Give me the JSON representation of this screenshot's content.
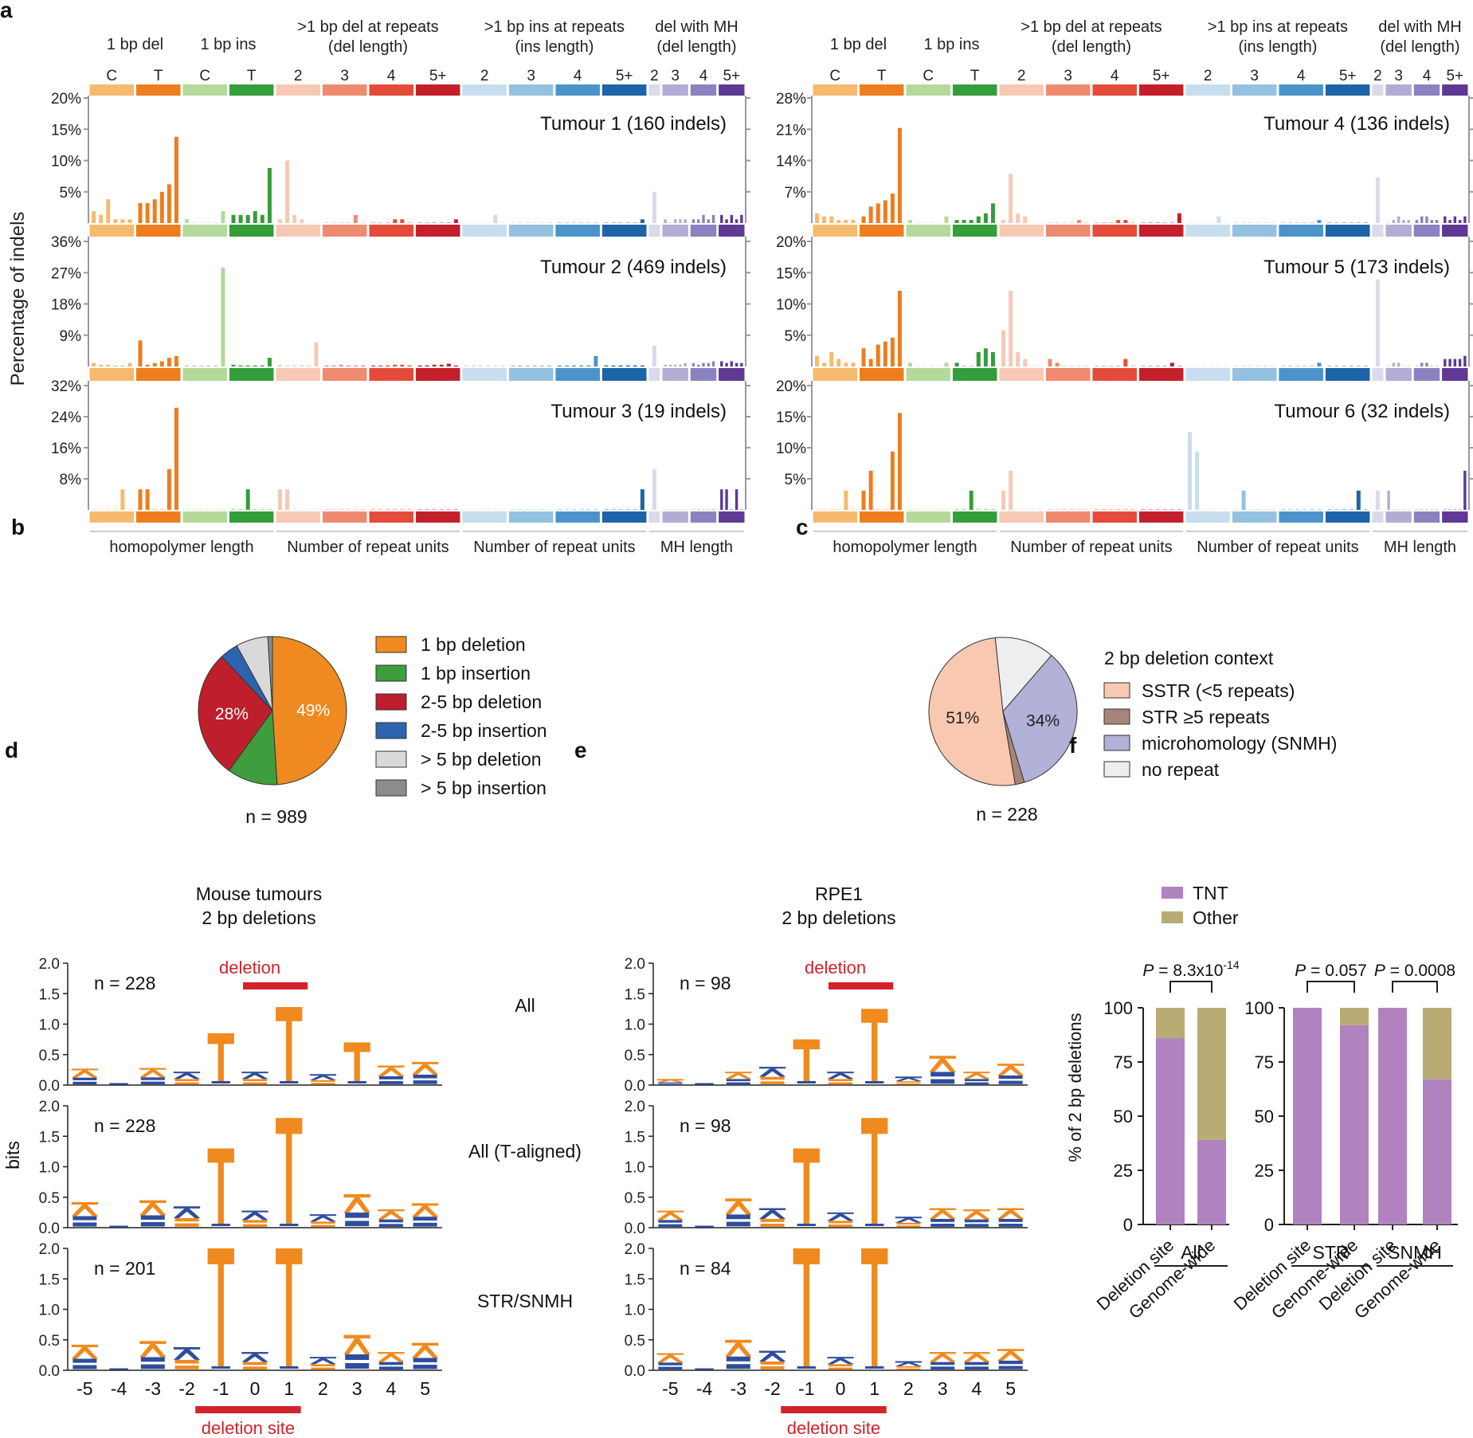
{
  "panel_letters": [
    "a",
    "b",
    "c",
    "d",
    "e",
    "f"
  ],
  "colors": {
    "cats": [
      "#F6BA6E",
      "#EE7D1E",
      "#B4D99A",
      "#339E3A",
      "#F7C9B5",
      "#EE8A70",
      "#E54B3A",
      "#C3202B",
      "#C8DEEE",
      "#95C1E0",
      "#4C93CB",
      "#1D64A8",
      "#DADAEC",
      "#B1ADD5",
      "#8A83C0",
      "#5E3A95"
    ],
    "logo_orange": "#F08A1E",
    "logo_blue": "#2E4D9C",
    "deletion_red": "#D2232A",
    "tnt": "#B082BF",
    "other": "#B8AC74"
  },
  "panel_a": {
    "ylabel": "Percentage of indels",
    "group_headers": [
      {
        "lines": [
          "1 bp del"
        ],
        "cols": [
          0,
          1
        ]
      },
      {
        "lines": [
          "1 bp ins"
        ],
        "cols": [
          2,
          3
        ]
      },
      {
        "lines": [
          ">1 bp del at repeats",
          "(del length)"
        ],
        "cols": [
          4,
          7
        ]
      },
      {
        "lines": [
          ">1 bp ins at repeats",
          "(ins length)"
        ],
        "cols": [
          8,
          11
        ]
      },
      {
        "lines": [
          "del with MH",
          "(del length)"
        ],
        "cols": [
          12,
          15
        ]
      }
    ],
    "cat_labels_left": [
      "C",
      "T",
      "C",
      "T",
      "2",
      "3",
      "4",
      "5+",
      "2",
      "3",
      "4",
      "5+",
      "2",
      "3",
      "4",
      "5+"
    ],
    "cat_labels_right": [
      "C",
      "T",
      "C",
      "T",
      "2",
      "3",
      "4",
      "5+",
      "2",
      "3",
      "4",
      "5+",
      "2",
      "3",
      "4",
      "5+"
    ],
    "footers": [
      {
        "text": "homopolymer length",
        "cols": [
          0,
          3
        ]
      },
      {
        "text": "Number of repeat units",
        "cols": [
          4,
          7
        ]
      },
      {
        "text": "Number of repeat units",
        "cols": [
          8,
          11
        ]
      },
      {
        "text": "MH length",
        "cols": [
          12,
          15
        ]
      }
    ]
  },
  "chart_data": [
    {
      "type": "bar",
      "panel": "a",
      "title": "Tumour 1 (160 indels)",
      "yticks": [
        "5%",
        "10%",
        "15%",
        "20%"
      ],
      "ylim": [
        0,
        20
      ],
      "bars_per_category": [
        6,
        6,
        6,
        6,
        6,
        6,
        6,
        6,
        6,
        6,
        6,
        6,
        1,
        5,
        5,
        5
      ],
      "values": [
        [
          1.9,
          1.3,
          3.8,
          0.6,
          0.6,
          0.6
        ],
        [
          3.2,
          3.2,
          3.8,
          5.0,
          6.2,
          13.8
        ],
        [
          0.6,
          0,
          0,
          0,
          0,
          1.9
        ],
        [
          1.3,
          1.3,
          1.3,
          1.9,
          1.3,
          8.8
        ],
        [
          0.6,
          10.0,
          1.3,
          0.6,
          0,
          0
        ],
        [
          0,
          0,
          0,
          0,
          1.3,
          0
        ],
        [
          0,
          0,
          0,
          0.6,
          0.6,
          0
        ],
        [
          0,
          0,
          0,
          0,
          0,
          0.6
        ],
        [
          0,
          0,
          0,
          0,
          1.3,
          0
        ],
        [
          0,
          0,
          0,
          0,
          0,
          0
        ],
        [
          0,
          0,
          0,
          0,
          0,
          0
        ],
        [
          0,
          0,
          0,
          0,
          0,
          0.6
        ],
        [
          5.0
        ],
        [
          0.6,
          0,
          0.6,
          0.6,
          0.6
        ],
        [
          0.6,
          0.6,
          1.3,
          0.6,
          1.3
        ],
        [
          1.3,
          0.6,
          1.3,
          0.6,
          1.3
        ]
      ]
    },
    {
      "type": "bar",
      "panel": "a",
      "title": "Tumour 2 (469 indels)",
      "yticks": [
        "9%",
        "18%",
        "27%",
        "36%"
      ],
      "ylim": [
        0,
        36
      ],
      "bars_per_category": [
        6,
        6,
        6,
        6,
        6,
        6,
        6,
        6,
        6,
        6,
        6,
        6,
        1,
        5,
        5,
        5
      ],
      "values": [
        [
          1.0,
          0.5,
          0.5,
          0.3,
          0.3,
          1.0
        ],
        [
          7.5,
          0.5,
          1.0,
          1.5,
          2.5,
          3.0
        ],
        [
          0.3,
          0.3,
          0.3,
          0.3,
          0.3,
          28.5
        ],
        [
          0.5,
          0.3,
          0.3,
          0.3,
          0.3,
          2.5
        ],
        [
          0.5,
          0.3,
          0.3,
          0.3,
          0.3,
          7.0
        ],
        [
          0.3,
          0.3,
          0.5,
          0.3,
          0.3,
          0.3
        ],
        [
          0.3,
          0.3,
          0.3,
          0.5,
          0.5,
          0.3
        ],
        [
          0.3,
          0.3,
          0.5,
          0.5,
          0.8,
          0.3
        ],
        [
          0.3,
          0.3,
          0.3,
          0.3,
          0.3,
          0.3
        ],
        [
          0.3,
          0.3,
          0.3,
          0.3,
          0.3,
          0.3
        ],
        [
          0.3,
          0.3,
          0.3,
          0.3,
          0.3,
          3.0
        ],
        [
          0.3,
          0.3,
          0.3,
          0.3,
          0.3,
          0.3
        ],
        [
          6.0
        ],
        [
          0.5,
          0.5,
          0.5,
          0.5,
          1.0
        ],
        [
          1.0,
          0.5,
          1.0,
          1.0,
          1.5
        ],
        [
          1.5,
          1.0,
          1.5,
          1.0,
          1.0
        ]
      ]
    },
    {
      "type": "bar",
      "panel": "a",
      "title": "Tumour 3 (19 indels)",
      "yticks": [
        "8%",
        "16%",
        "24%",
        "32%"
      ],
      "ylim": [
        0,
        32
      ],
      "bars_per_category": [
        6,
        6,
        6,
        6,
        6,
        6,
        6,
        6,
        6,
        6,
        6,
        6,
        1,
        5,
        5,
        5
      ],
      "values": [
        [
          0,
          0,
          0,
          0,
          5.3,
          0
        ],
        [
          5.3,
          5.3,
          0,
          0,
          10.5,
          26.3
        ],
        [
          0,
          0,
          0,
          0,
          0,
          0
        ],
        [
          0,
          0,
          5.3,
          0,
          0,
          0
        ],
        [
          5.3,
          5.3,
          0,
          0,
          0,
          0
        ],
        [
          0,
          0,
          0,
          0,
          0,
          0
        ],
        [
          0,
          0,
          0,
          0,
          0,
          0
        ],
        [
          0,
          0,
          0,
          0,
          0,
          0
        ],
        [
          0,
          0,
          0,
          0,
          0,
          0
        ],
        [
          0,
          0,
          0,
          0,
          0,
          0
        ],
        [
          0,
          0,
          0,
          0,
          0,
          0
        ],
        [
          0,
          0,
          0,
          0,
          0,
          5.3
        ],
        [
          10.5
        ],
        [
          0,
          0,
          0,
          0,
          0
        ],
        [
          0,
          0,
          0,
          0,
          0
        ],
        [
          5.3,
          5.3,
          0,
          5.3,
          0
        ]
      ]
    },
    {
      "type": "bar",
      "panel": "a",
      "title": "Tumour 4 (136 indels)",
      "yticks": [
        "7%",
        "14%",
        "21%",
        "28%"
      ],
      "ylim": [
        0,
        28
      ],
      "bars_per_category": [
        6,
        6,
        6,
        6,
        6,
        6,
        6,
        6,
        6,
        6,
        6,
        6,
        1,
        5,
        5,
        5
      ],
      "values": [
        [
          2.2,
          1.5,
          1.5,
          0.7,
          0.7,
          0.7
        ],
        [
          1.5,
          3.7,
          4.4,
          5.1,
          6.6,
          21.3
        ],
        [
          0.7,
          0,
          0,
          0,
          0,
          1.5
        ],
        [
          0.7,
          0.7,
          0.7,
          1.5,
          2.2,
          4.4
        ],
        [
          0.7,
          11.0,
          2.2,
          1.5,
          0,
          0
        ],
        [
          0,
          0,
          0,
          0,
          0.7,
          0
        ],
        [
          0,
          0,
          0,
          0.7,
          0.7,
          0
        ],
        [
          0,
          0,
          0,
          0,
          0,
          2.2
        ],
        [
          0,
          0,
          0,
          0,
          1.5,
          0
        ],
        [
          0,
          0,
          0,
          0,
          0,
          0
        ],
        [
          0,
          0,
          0,
          0,
          0,
          0.7
        ],
        [
          0,
          0,
          0,
          0,
          0,
          0
        ],
        [
          10.3
        ],
        [
          0,
          0.7,
          1.5,
          0.7,
          0.7
        ],
        [
          0.7,
          1.5,
          1.5,
          0.7,
          0.7
        ],
        [
          1.5,
          0.7,
          1.5,
          0.7,
          1.5
        ]
      ]
    },
    {
      "type": "bar",
      "panel": "a",
      "title": "Tumour 5 (173 indels)",
      "yticks": [
        "5%",
        "10%",
        "15%",
        "20%"
      ],
      "ylim": [
        0,
        20
      ],
      "bars_per_category": [
        6,
        6,
        6,
        6,
        6,
        6,
        6,
        6,
        6,
        6,
        6,
        6,
        1,
        5,
        5,
        5
      ],
      "values": [
        [
          1.7,
          0.6,
          2.3,
          1.2,
          0.6,
          0.6
        ],
        [
          2.9,
          1.2,
          3.5,
          4.0,
          4.6,
          12.1
        ],
        [
          0.6,
          0,
          0,
          0,
          0,
          0.6
        ],
        [
          0.6,
          0,
          0,
          2.3,
          2.9,
          2.3
        ],
        [
          5.8,
          12.1,
          2.3,
          1.2,
          0,
          0
        ],
        [
          1.2,
          0.6,
          0,
          0,
          0,
          0
        ],
        [
          0,
          0,
          0,
          0,
          1.2,
          0
        ],
        [
          0,
          0,
          0,
          0,
          0.6,
          0
        ],
        [
          0,
          0,
          0,
          0,
          0,
          0
        ],
        [
          0,
          0,
          0,
          0,
          0,
          0
        ],
        [
          0,
          0,
          0,
          0,
          0,
          0.6
        ],
        [
          0,
          0,
          0,
          0,
          0,
          0
        ],
        [
          13.9
        ],
        [
          0,
          0.6,
          0.6,
          0,
          0
        ],
        [
          0,
          0.6,
          0.6,
          0,
          0
        ],
        [
          1.2,
          1.2,
          1.2,
          1.2,
          1.7
        ]
      ]
    },
    {
      "type": "bar",
      "panel": "a",
      "title": "Tumour 6 (32 indels)",
      "yticks": [
        "5%",
        "10%",
        "15%",
        "20%"
      ],
      "ylim": [
        0,
        20
      ],
      "bars_per_category": [
        6,
        6,
        6,
        6,
        6,
        6,
        6,
        6,
        6,
        6,
        6,
        6,
        1,
        5,
        5,
        5
      ],
      "values": [
        [
          0,
          0,
          0,
          0,
          3.1,
          0
        ],
        [
          3.1,
          6.3,
          0,
          0,
          9.4,
          15.6
        ],
        [
          0,
          0,
          0,
          0,
          0,
          0
        ],
        [
          0,
          0,
          3.1,
          0,
          0,
          0
        ],
        [
          3.1,
          6.3,
          0,
          0,
          0,
          0
        ],
        [
          0,
          0,
          0,
          0,
          0,
          0
        ],
        [
          0,
          0,
          0,
          0,
          0,
          0
        ],
        [
          0,
          0,
          0,
          0,
          0,
          0
        ],
        [
          12.5,
          9.4,
          0,
          0,
          0,
          0
        ],
        [
          0,
          3.1,
          0,
          0,
          0,
          0
        ],
        [
          0,
          0,
          0,
          0,
          0,
          0
        ],
        [
          0,
          0,
          0,
          0,
          3.1,
          0
        ],
        [
          3.1
        ],
        [
          3.1,
          0,
          0,
          0,
          0
        ],
        [
          0,
          0,
          0,
          0,
          0
        ],
        [
          0,
          0,
          0,
          0,
          6.3
        ]
      ]
    },
    {
      "type": "pie",
      "panel": "b",
      "categories": [
        "1 bp deletion",
        "1 bp insertion",
        "2-5 bp deletion",
        "2-5 bp insertion",
        "> 5 bp deletion",
        "> 5 bp insertion"
      ],
      "values": [
        49,
        11,
        28,
        4,
        7,
        1
      ],
      "colors": [
        "#EE8A1F",
        "#3E9D3C",
        "#BF1E2D",
        "#2C64AD",
        "#D9D9D9",
        "#8C8C8C"
      ],
      "slice_labels": [
        "49%",
        "",
        "28%",
        "",
        "",
        ""
      ],
      "n_label": "n = 989"
    },
    {
      "type": "pie",
      "panel": "c",
      "legend_title": "2 bp deletion context",
      "categories": [
        "SSTR (<5 repeats)",
        "STR ≥5 repeats",
        "microhomology (SNMH)",
        "no repeat"
      ],
      "values": [
        51,
        2,
        34,
        13
      ],
      "colors": [
        "#F8C8B1",
        "#A5857A",
        "#B2B1D8",
        "#EEEEEE"
      ],
      "slice_labels": [
        "51%",
        "",
        "34%",
        ""
      ],
      "n_label": "n = 228"
    },
    {
      "type": "bar",
      "panel": "f",
      "legend": [
        "TNT",
        "Other"
      ],
      "ylabel": "% of 2 bp deletions",
      "ylim": [
        0,
        100
      ],
      "yticks": [
        "0",
        "25",
        "50",
        "75",
        "100"
      ],
      "groups": [
        {
          "name": "All",
          "p": "8.3x10",
          "p_exp": "-14",
          "bars": [
            {
              "label": "Deletion site",
              "tnt": 86,
              "other": 14
            },
            {
              "label": "Genome-wide",
              "tnt": 39,
              "other": 61
            }
          ]
        },
        {
          "name": "STR",
          "p": "0.057",
          "bars": [
            {
              "label": "Deletion site",
              "tnt": 100,
              "other": 0
            },
            {
              "label": "Genome-wide",
              "tnt": 92,
              "other": 8
            }
          ]
        },
        {
          "name": "SNMH",
          "p": "0.0008",
          "bars": [
            {
              "label": "Deletion site",
              "tnt": 100,
              "other": 0
            },
            {
              "label": "Genome-wide",
              "tnt": 67,
              "other": 33
            }
          ]
        }
      ]
    }
  ],
  "panel_d": {
    "title_lines": [
      "Mouse tumours",
      "2 bp deletions"
    ],
    "ylabel": "bits",
    "yticks": [
      "0.0",
      "0.5",
      "1.0",
      "1.5",
      "2.0"
    ],
    "xticks": [
      "-5",
      "-4",
      "-3",
      "-2",
      "-1",
      "0",
      "1",
      "2",
      "3",
      "4",
      "5"
    ],
    "row_labels": [
      "All",
      "All (T-aligned)",
      "STR/SNMH"
    ],
    "deletion_label": "deletion",
    "deletion_site_label": "deletion site",
    "rows": [
      {
        "n": "n = 228",
        "heights": [
          0.27,
          0.02,
          0.28,
          0.22,
          0.85,
          0.22,
          1.28,
          0.18,
          0.7,
          0.32,
          0.38
        ]
      },
      {
        "n": "n = 228",
        "heights": [
          0.42,
          0.02,
          0.45,
          0.35,
          1.3,
          0.28,
          1.8,
          0.22,
          0.55,
          0.3,
          0.4
        ]
      },
      {
        "n": "n = 201",
        "heights": [
          0.42,
          0.02,
          0.48,
          0.38,
          2.0,
          0.3,
          2.0,
          0.22,
          0.58,
          0.3,
          0.45
        ]
      }
    ]
  },
  "panel_e": {
    "title_lines": [
      "RPE1",
      "2 bp deletions"
    ],
    "yticks": [
      "0.0",
      "0.5",
      "1.0",
      "1.5",
      "2.0"
    ],
    "xticks": [
      "-5",
      "-4",
      "-3",
      "-2",
      "-1",
      "0",
      "1",
      "2",
      "3",
      "4",
      "5"
    ],
    "deletion_label": "deletion",
    "deletion_site_label": "deletion site",
    "rows": [
      {
        "n": "n = 98",
        "heights": [
          0.1,
          0.03,
          0.22,
          0.3,
          0.75,
          0.22,
          1.25,
          0.14,
          0.48,
          0.22,
          0.35
        ]
      },
      {
        "n": "n = 98",
        "heights": [
          0.28,
          0.03,
          0.48,
          0.32,
          1.3,
          0.25,
          1.8,
          0.18,
          0.32,
          0.3,
          0.32
        ]
      },
      {
        "n": "n = 84",
        "heights": [
          0.28,
          0.03,
          0.5,
          0.32,
          2.0,
          0.22,
          2.0,
          0.15,
          0.3,
          0.3,
          0.35
        ]
      }
    ]
  }
}
